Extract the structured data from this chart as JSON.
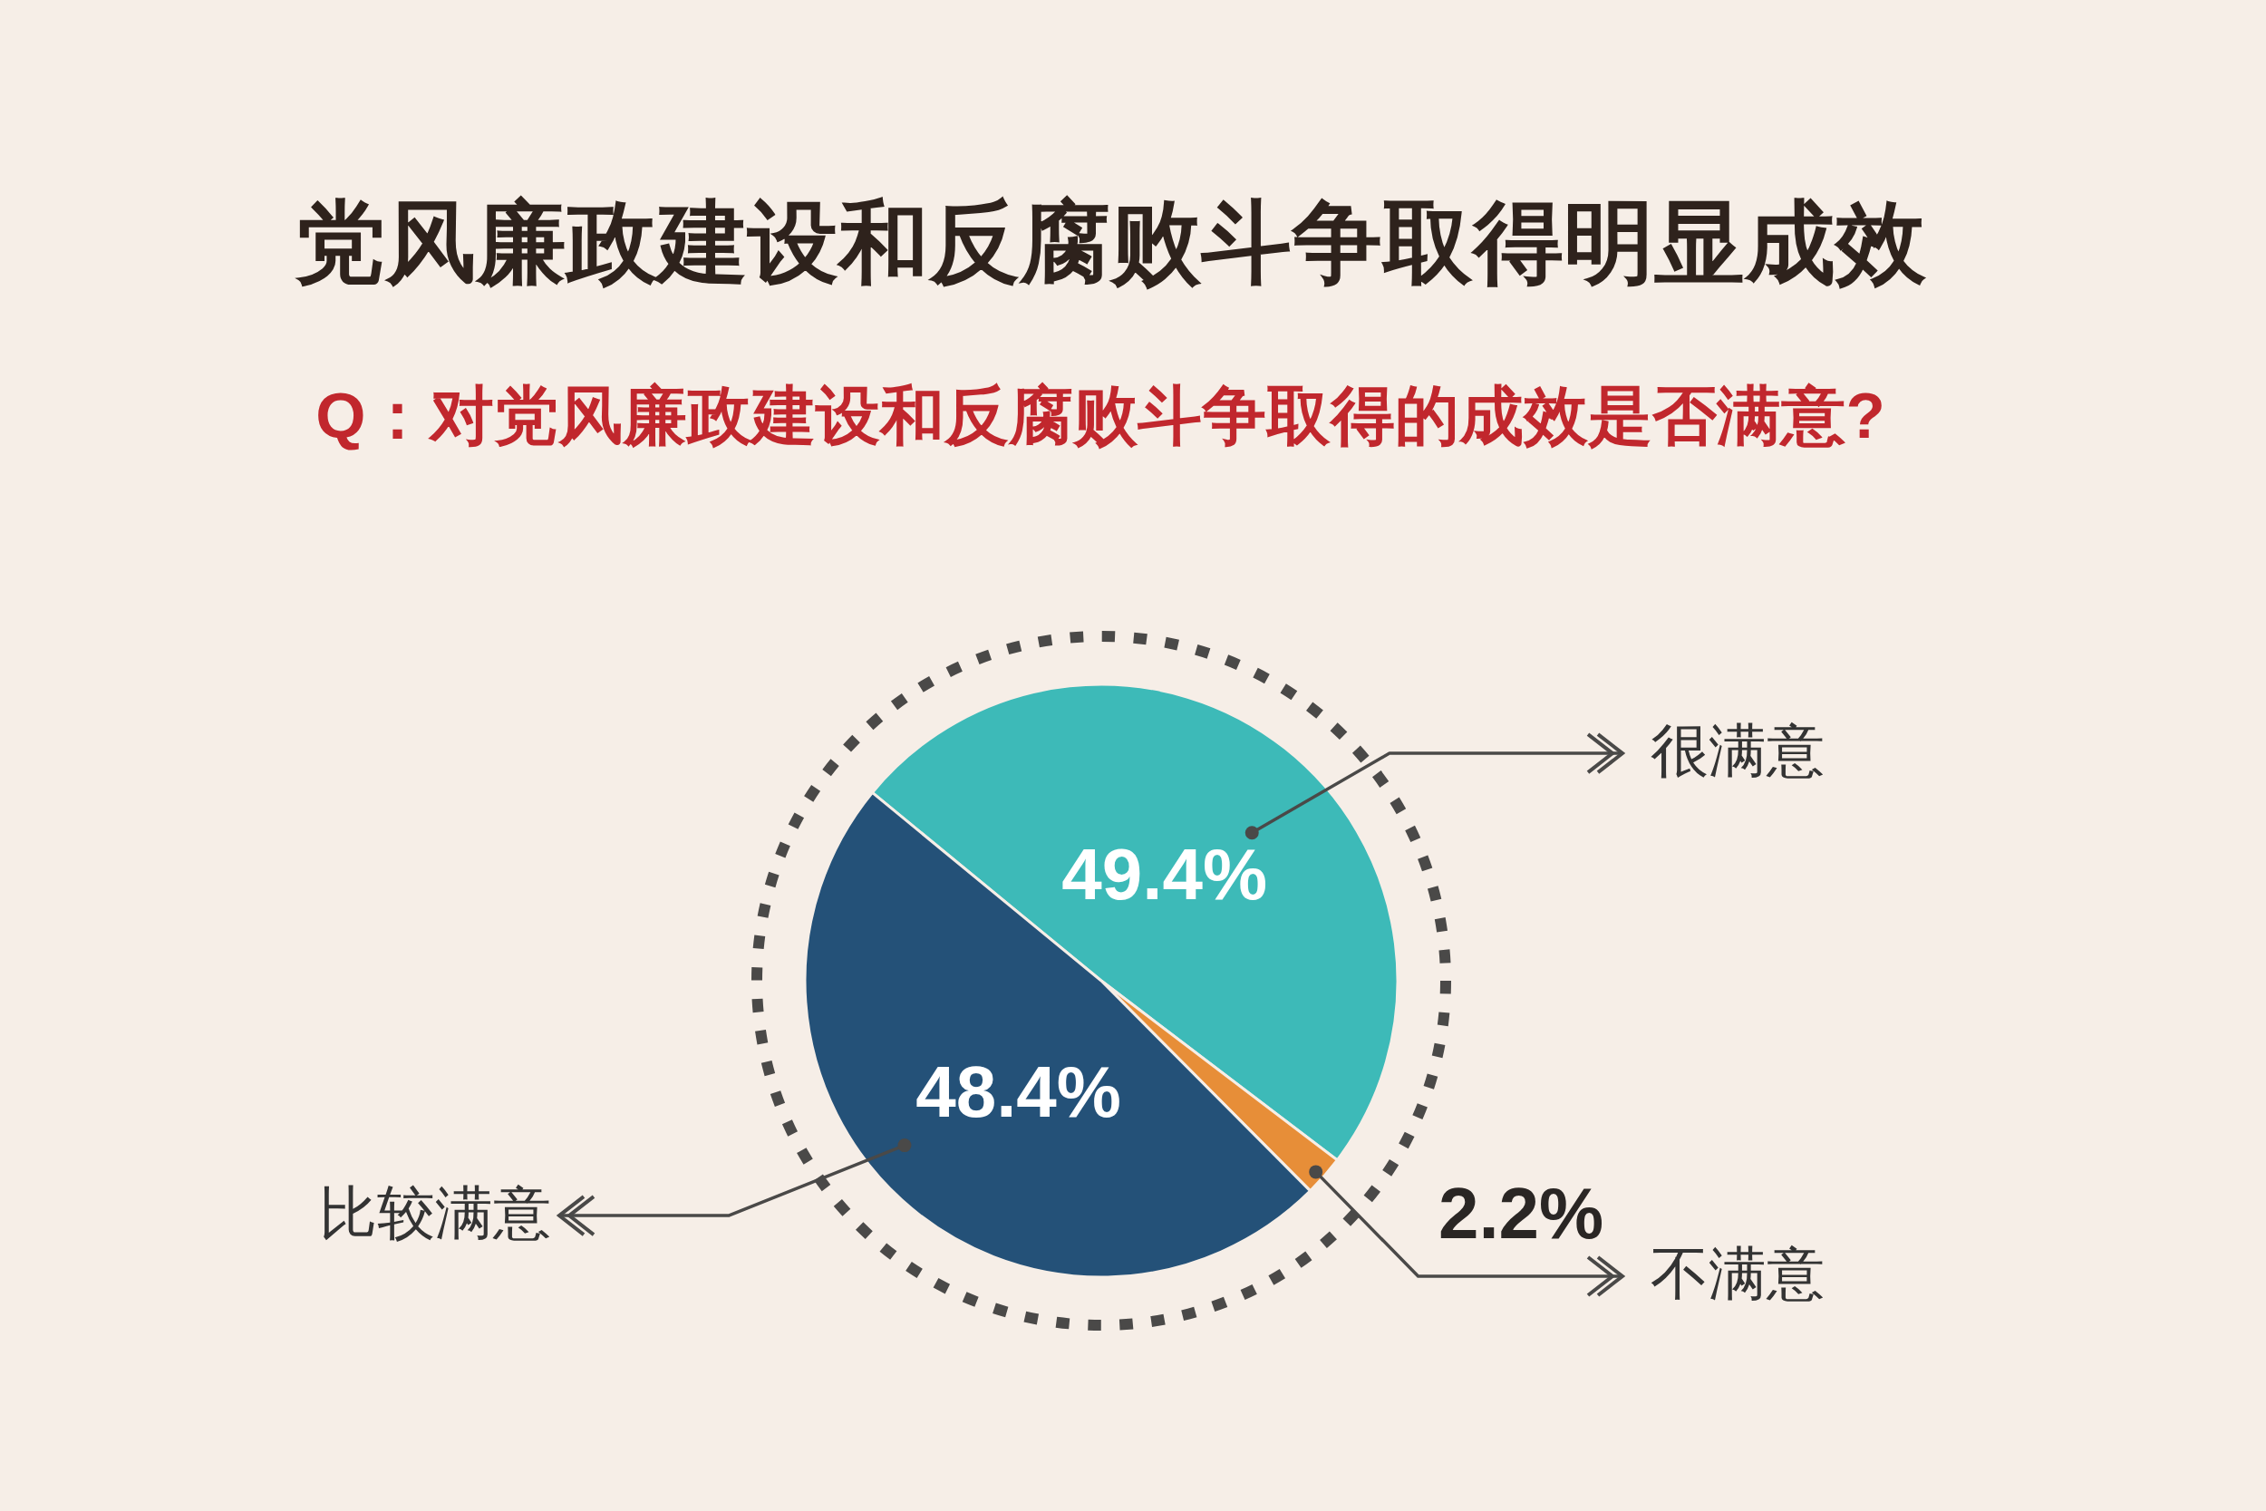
{
  "chart_data": {
    "type": "pie",
    "title": "党风廉政建设和反腐败斗争取得明显成效",
    "subtitle": "Q：对党风廉政建设和反腐败斗争取得的成效是否满意?",
    "categories": [
      "很满意",
      "不满意",
      "比较满意"
    ],
    "values": [
      49.4,
      2.2,
      48.4
    ],
    "colors": [
      "#3dbab8",
      "#e78e38",
      "#245178"
    ],
    "value_labels": [
      "49.4%",
      "2.2%",
      "48.4%"
    ]
  }
}
